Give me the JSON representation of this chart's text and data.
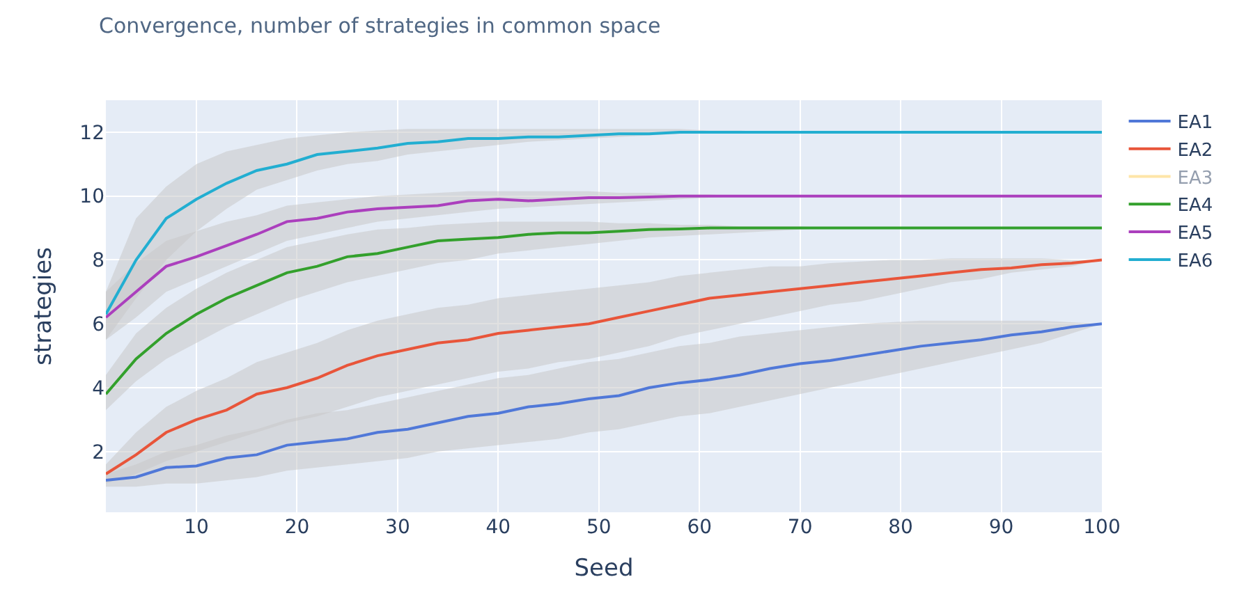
{
  "chart_data": {
    "type": "line",
    "title": "Convergence, number of strategies in common space",
    "xlabel": "Seed",
    "ylabel": "strategies",
    "x": [
      1,
      4,
      7,
      10,
      13,
      16,
      19,
      22,
      25,
      28,
      31,
      34,
      37,
      40,
      43,
      46,
      49,
      52,
      55,
      58,
      61,
      64,
      67,
      70,
      73,
      76,
      79,
      82,
      85,
      88,
      91,
      94,
      97,
      100
    ],
    "xlim": [
      1,
      100
    ],
    "xticks": [
      10,
      20,
      30,
      40,
      50,
      60,
      70,
      80,
      90,
      100
    ],
    "ylim": [
      0.1,
      13
    ],
    "yticks": [
      2,
      4,
      6,
      8,
      10,
      12
    ],
    "grid": true,
    "legend": "top right",
    "line_style": "solid",
    "marker": "none",
    "series": [
      {
        "name": "EA1",
        "color": "#5078d8",
        "values": [
          1.1,
          1.2,
          1.5,
          1.55,
          1.8,
          1.9,
          2.2,
          2.3,
          2.4,
          2.6,
          2.7,
          2.9,
          3.1,
          3.2,
          3.4,
          3.5,
          3.65,
          3.75,
          4.0,
          4.15,
          4.25,
          4.4,
          4.6,
          4.75,
          4.85,
          5.0,
          5.15,
          5.3,
          5.4,
          5.5,
          5.65,
          5.75,
          5.9,
          6.0
        ],
        "lower": [
          0.9,
          0.9,
          1.0,
          1.0,
          1.1,
          1.2,
          1.4,
          1.5,
          1.6,
          1.7,
          1.8,
          2.0,
          2.1,
          2.2,
          2.3,
          2.4,
          2.6,
          2.7,
          2.9,
          3.1,
          3.2,
          3.4,
          3.6,
          3.8,
          4.0,
          4.2,
          4.4,
          4.6,
          4.8,
          5.0,
          5.2,
          5.4,
          5.7,
          6.0
        ],
        "upper": [
          1.3,
          1.6,
          2.0,
          2.2,
          2.5,
          2.7,
          3.0,
          3.2,
          3.3,
          3.5,
          3.7,
          3.9,
          4.1,
          4.3,
          4.4,
          4.6,
          4.8,
          4.9,
          5.1,
          5.3,
          5.4,
          5.6,
          5.7,
          5.8,
          5.9,
          6.0,
          6.05,
          6.1,
          6.1,
          6.1,
          6.1,
          6.1,
          6.05,
          6.0
        ]
      },
      {
        "name": "EA2",
        "color": "#e8553a",
        "values": [
          1.3,
          1.9,
          2.6,
          3.0,
          3.3,
          3.8,
          4.0,
          4.3,
          4.7,
          5.0,
          5.2,
          5.4,
          5.5,
          5.7,
          5.8,
          5.9,
          6.0,
          6.2,
          6.4,
          6.6,
          6.8,
          6.9,
          7.0,
          7.1,
          7.2,
          7.3,
          7.4,
          7.5,
          7.6,
          7.7,
          7.75,
          7.85,
          7.9,
          8.0
        ],
        "lower": [
          1.0,
          1.3,
          1.7,
          2.0,
          2.3,
          2.6,
          2.9,
          3.1,
          3.4,
          3.7,
          3.9,
          4.1,
          4.3,
          4.5,
          4.6,
          4.8,
          4.9,
          5.1,
          5.3,
          5.6,
          5.8,
          6.0,
          6.2,
          6.4,
          6.6,
          6.7,
          6.9,
          7.1,
          7.3,
          7.4,
          7.6,
          7.7,
          7.8,
          8.0
        ],
        "upper": [
          1.6,
          2.6,
          3.4,
          3.9,
          4.3,
          4.8,
          5.1,
          5.4,
          5.8,
          6.1,
          6.3,
          6.5,
          6.6,
          6.8,
          6.9,
          7.0,
          7.1,
          7.2,
          7.3,
          7.5,
          7.6,
          7.7,
          7.8,
          7.8,
          7.9,
          7.95,
          8.0,
          8.0,
          8.05,
          8.05,
          8.05,
          8.05,
          8.0,
          8.0
        ]
      },
      {
        "name": "EA3",
        "color": "#fecb52",
        "values": [
          null,
          null,
          null,
          null,
          null,
          null,
          null,
          null,
          null,
          null,
          null,
          null,
          null,
          null,
          null,
          null,
          null,
          null,
          null,
          null,
          null,
          null,
          null,
          null,
          null,
          null,
          null,
          null,
          null,
          null,
          null,
          null,
          null,
          null
        ]
      },
      {
        "name": "EA4",
        "color": "#33a02c",
        "values": [
          3.8,
          4.9,
          5.7,
          6.3,
          6.8,
          7.2,
          7.6,
          7.8,
          8.1,
          8.2,
          8.4,
          8.6,
          8.65,
          8.7,
          8.8,
          8.85,
          8.85,
          8.9,
          8.95,
          8.97,
          9,
          9,
          9,
          9,
          9,
          9,
          9,
          9,
          9,
          9,
          9,
          9,
          9,
          9
        ],
        "lower": [
          3.3,
          4.2,
          4.9,
          5.4,
          5.9,
          6.3,
          6.7,
          7.0,
          7.3,
          7.5,
          7.7,
          7.9,
          8.0,
          8.2,
          8.3,
          8.4,
          8.5,
          8.6,
          8.7,
          8.75,
          8.8,
          8.85,
          8.9,
          8.95,
          9,
          9,
          9,
          9,
          9,
          9,
          9,
          9,
          9,
          9
        ],
        "upper": [
          4.4,
          5.7,
          6.5,
          7.1,
          7.6,
          8.0,
          8.4,
          8.6,
          8.8,
          8.95,
          9.0,
          9.1,
          9.15,
          9.2,
          9.2,
          9.2,
          9.2,
          9.15,
          9.15,
          9.1,
          9.1,
          9.05,
          9.05,
          9.05,
          9,
          9,
          9,
          9,
          9,
          9,
          9,
          9,
          9,
          9
        ]
      },
      {
        "name": "EA5",
        "color": "#ab3fbd",
        "values": [
          6.2,
          7.0,
          7.8,
          8.1,
          8.45,
          8.8,
          9.2,
          9.3,
          9.5,
          9.6,
          9.65,
          9.7,
          9.85,
          9.9,
          9.85,
          9.9,
          9.95,
          9.95,
          9.97,
          10,
          10,
          10,
          10,
          10,
          10,
          10,
          10,
          10,
          10,
          10,
          10,
          10,
          10,
          10
        ],
        "lower": [
          5.5,
          6.2,
          7.0,
          7.4,
          7.8,
          8.2,
          8.6,
          8.8,
          9.0,
          9.2,
          9.3,
          9.4,
          9.5,
          9.6,
          9.65,
          9.7,
          9.75,
          9.8,
          9.85,
          9.9,
          9.95,
          10,
          10,
          10,
          10,
          10,
          10,
          10,
          10,
          10,
          10,
          10,
          10,
          10
        ],
        "upper": [
          7.0,
          7.9,
          8.6,
          8.9,
          9.2,
          9.4,
          9.7,
          9.8,
          9.9,
          10.0,
          10.05,
          10.1,
          10.15,
          10.15,
          10.15,
          10.15,
          10.15,
          10.1,
          10.1,
          10.05,
          10.05,
          10,
          10,
          10,
          10,
          10,
          10,
          10,
          10,
          10,
          10,
          10,
          10,
          10
        ]
      },
      {
        "name": "EA6",
        "color": "#22aed1",
        "values": [
          6.3,
          8.0,
          9.3,
          9.9,
          10.4,
          10.8,
          11.0,
          11.3,
          11.4,
          11.5,
          11.65,
          11.7,
          11.8,
          11.8,
          11.85,
          11.85,
          11.9,
          11.95,
          11.95,
          12,
          12,
          12,
          12,
          12,
          12,
          12,
          12,
          12,
          12,
          12,
          12,
          12,
          12,
          12
        ],
        "lower": [
          5.5,
          6.8,
          8.0,
          8.9,
          9.6,
          10.2,
          10.5,
          10.8,
          11.0,
          11.1,
          11.3,
          11.4,
          11.5,
          11.6,
          11.7,
          11.75,
          11.8,
          11.85,
          11.9,
          11.95,
          12,
          12,
          12,
          12,
          12,
          12,
          12,
          12,
          12,
          12,
          12,
          12,
          12,
          12
        ],
        "upper": [
          7.0,
          9.3,
          10.3,
          11.0,
          11.4,
          11.6,
          11.8,
          11.9,
          12.0,
          12.05,
          12.1,
          12.1,
          12.1,
          12.1,
          12.1,
          12.1,
          12.1,
          12.1,
          12.1,
          12.1,
          12.05,
          12.05,
          12,
          12,
          12,
          12,
          12,
          12,
          12,
          12,
          12,
          12,
          12,
          12
        ]
      }
    ]
  }
}
